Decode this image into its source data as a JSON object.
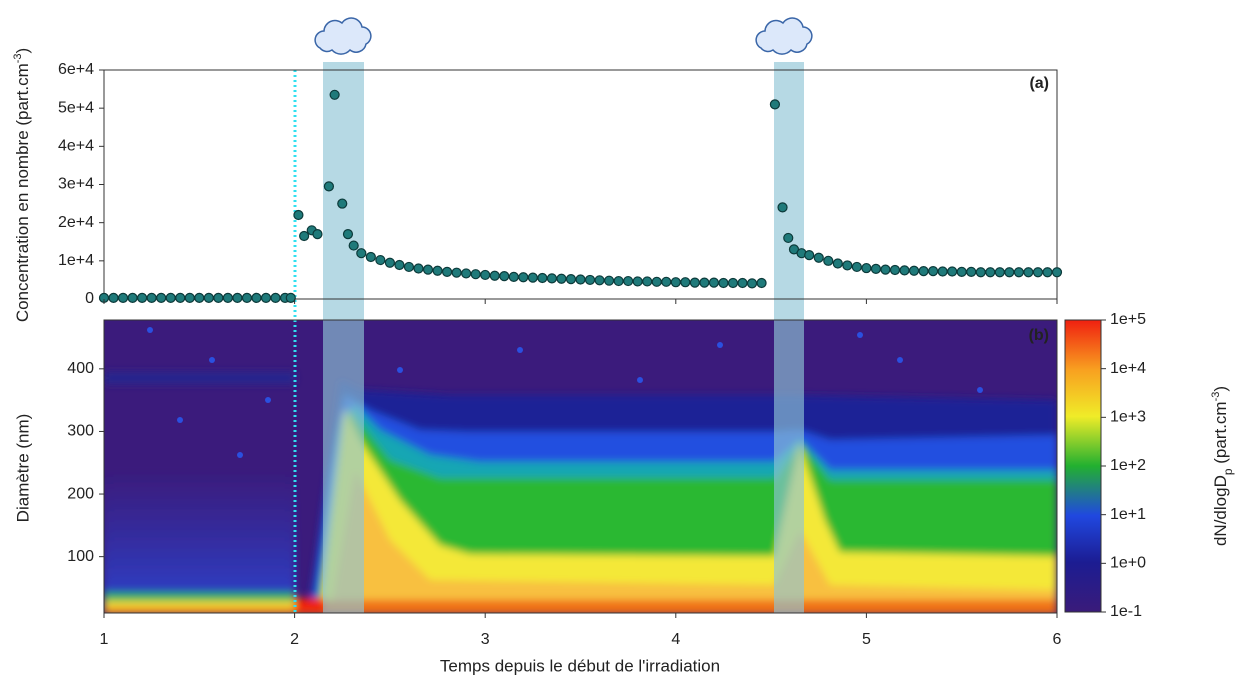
{
  "chart_data": [
    {
      "type": "scatter",
      "panel_label": "(a)",
      "y_label": [
        "Concentration en nombre (part.cm",
        "-3",
        ")"
      ],
      "color": "#1f7a7a",
      "xlim": [
        1,
        6
      ],
      "ylim": [
        0,
        60000
      ],
      "yticks": [
        0,
        {
          "value": 10000,
          "label": "1e+4"
        },
        {
          "value": 20000,
          "label": "2e+4"
        },
        {
          "value": 30000,
          "label": "3e+4"
        },
        {
          "value": 40000,
          "label": "4e+4"
        },
        {
          "value": 50000,
          "label": "5e+4"
        },
        {
          "value": 60000,
          "label": "6e+4"
        }
      ],
      "x": [
        1,
        1.05,
        1.1,
        1.15,
        1.2,
        1.25,
        1.3,
        1.35,
        1.4,
        1.45,
        1.5,
        1.55,
        1.6,
        1.65,
        1.7,
        1.75,
        1.8,
        1.85,
        1.9,
        1.95,
        1.98,
        2.02,
        2.05,
        2.09,
        2.12,
        2.18,
        2.21,
        2.25,
        2.28,
        2.31,
        2.35,
        2.4,
        2.45,
        2.5,
        2.55,
        2.6,
        2.65,
        2.7,
        2.75,
        2.8,
        2.85,
        2.9,
        2.95,
        3,
        3.05,
        3.1,
        3.15,
        3.2,
        3.25,
        3.3,
        3.35,
        3.4,
        3.45,
        3.5,
        3.55,
        3.6,
        3.65,
        3.7,
        3.75,
        3.8,
        3.85,
        3.9,
        3.95,
        4,
        4.05,
        4.1,
        4.15,
        4.2,
        4.25,
        4.3,
        4.35,
        4.4,
        4.45,
        4.52,
        4.56,
        4.59,
        4.62,
        4.66,
        4.7,
        4.75,
        4.8,
        4.85,
        4.9,
        4.95,
        5,
        5.05,
        5.1,
        5.15,
        5.2,
        5.25,
        5.3,
        5.35,
        5.4,
        5.45,
        5.5,
        5.55,
        5.6,
        5.65,
        5.7,
        5.75,
        5.8,
        5.85,
        5.9,
        5.95,
        6
      ],
      "values": [
        300,
        300,
        300,
        300,
        300,
        300,
        300,
        300,
        300,
        300,
        300,
        300,
        300,
        300,
        300,
        300,
        300,
        300,
        300,
        300,
        300,
        22000,
        16500,
        18000,
        17000,
        29500,
        53500,
        25000,
        17000,
        14000,
        12000,
        11000,
        10200,
        9500,
        8900,
        8400,
        8000,
        7700,
        7400,
        7100,
        6900,
        6700,
        6500,
        6300,
        6100,
        6000,
        5800,
        5700,
        5600,
        5500,
        5400,
        5300,
        5200,
        5100,
        5000,
        4900,
        4800,
        4700,
        4700,
        4600,
        4600,
        4500,
        4500,
        4400,
        4400,
        4300,
        4300,
        4300,
        4200,
        4200,
        4200,
        4100,
        4200,
        51000,
        24000,
        16000,
        13000,
        12000,
        11500,
        10800,
        10000,
        9300,
        8800,
        8400,
        8100,
        7900,
        7700,
        7600,
        7500,
        7400,
        7300,
        7300,
        7200,
        7200,
        7100,
        7100,
        7000,
        7000,
        7000,
        7000,
        7000,
        7000,
        7000,
        7000,
        7000
      ]
    },
    {
      "type": "heatmap",
      "panel_label": "(b)",
      "y_label": "Diamètre (nm)",
      "x_label": "Temps depuis le début de l'irradiation",
      "xlim": [
        1,
        6
      ],
      "xticks": [
        1,
        2,
        3,
        4,
        5,
        6
      ],
      "ylim": [
        10,
        478
      ],
      "yticks": [
        100,
        200,
        300,
        400
      ],
      "colorbar": {
        "label": [
          "dN/dlogD",
          "p",
          " (part.cm",
          "-3",
          ")"
        ],
        "log": true,
        "lim": [
          0.1,
          100000
        ],
        "ticks": [
          {
            "value": 0.1,
            "label": "1e-1"
          },
          {
            "value": 1,
            "label": "1e+0"
          },
          {
            "value": 10,
            "label": "1e+1"
          },
          {
            "value": 100,
            "label": "1e+2"
          },
          {
            "value": 1000,
            "label": "1e+3"
          },
          {
            "value": 10000,
            "label": "1e+4"
          },
          {
            "value": 100000,
            "label": "1e+5"
          }
        ]
      }
    }
  ]
}
